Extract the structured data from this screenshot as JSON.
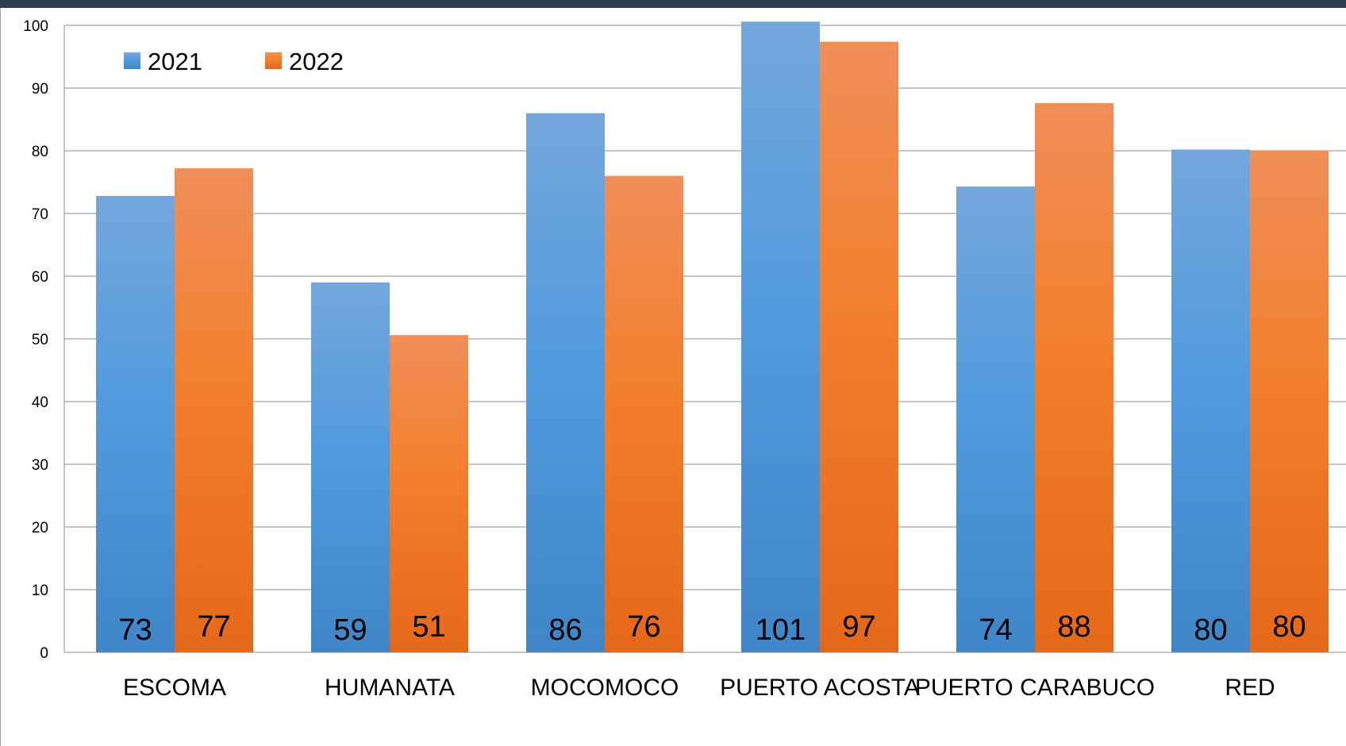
{
  "chart_data": {
    "type": "bar",
    "title": "",
    "xlabel": "",
    "ylabel": "",
    "ylim": [
      0,
      100
    ],
    "yticks": [
      0,
      10,
      20,
      30,
      40,
      50,
      60,
      70,
      80,
      90,
      100
    ],
    "grid": true,
    "legend_position": "top-left",
    "categories": [
      "ESCOMA",
      "HUMANATA",
      "MOCOMOCO",
      "PUERTO ACOSTA",
      "PUERTO CARABUCO",
      "RED"
    ],
    "series": [
      {
        "name": "2021",
        "color": "#4a90d9",
        "values": [
          72.8,
          59.0,
          86.0,
          100.6,
          74.3,
          80.2
        ],
        "labels": [
          "73",
          "59",
          "86",
          "101",
          "74",
          "80"
        ]
      },
      {
        "name": "2022",
        "color": "#f07d27",
        "values": [
          77.2,
          50.6,
          76.0,
          97.4,
          87.6,
          80.0
        ],
        "labels": [
          "77",
          "51",
          "76",
          "97",
          "88",
          "80"
        ]
      }
    ]
  }
}
